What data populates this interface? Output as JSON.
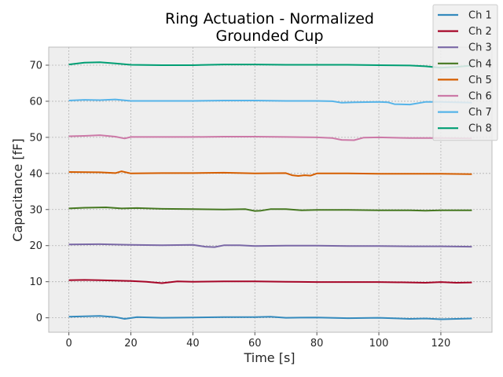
{
  "chart_data": {
    "type": "line",
    "title": "Ring Actuation - Normalized\nGrounded Cup",
    "xlabel": "Time [s]",
    "ylabel": "Capacitance [fF]",
    "xlim": [
      -6.5,
      136.5
    ],
    "ylim": [
      -4,
      75
    ],
    "xticks": [
      0,
      20,
      40,
      60,
      80,
      100,
      120
    ],
    "yticks": [
      0,
      10,
      20,
      30,
      40,
      50,
      60,
      70
    ],
    "grid": true,
    "legend_position": "top-right",
    "series": [
      {
        "name": "Ch 1",
        "color": "#348abd",
        "x": [
          0,
          5,
          10,
          15,
          18,
          22,
          30,
          40,
          50,
          60,
          65,
          70,
          80,
          90,
          100,
          110,
          115,
          120,
          125,
          130
        ],
        "y": [
          0.3,
          0.4,
          0.5,
          0.2,
          -0.3,
          0.2,
          0.0,
          0.1,
          0.2,
          0.2,
          0.3,
          0.0,
          0.1,
          -0.1,
          0.0,
          -0.3,
          -0.2,
          -0.4,
          -0.3,
          -0.2
        ]
      },
      {
        "name": "Ch 2",
        "color": "#a60628",
        "x": [
          0,
          5,
          10,
          15,
          20,
          25,
          30,
          35,
          40,
          50,
          60,
          70,
          80,
          90,
          100,
          110,
          115,
          120,
          125,
          130
        ],
        "y": [
          10.4,
          10.5,
          10.4,
          10.3,
          10.2,
          10.0,
          9.6,
          10.1,
          10.0,
          10.1,
          10.1,
          10.0,
          9.9,
          9.9,
          9.9,
          9.8,
          9.7,
          9.9,
          9.7,
          9.8
        ]
      },
      {
        "name": "Ch 3",
        "color": "#7a68a6",
        "x": [
          0,
          10,
          20,
          30,
          40,
          44,
          47,
          50,
          55,
          60,
          70,
          80,
          90,
          100,
          110,
          120,
          130
        ],
        "y": [
          20.3,
          20.4,
          20.2,
          20.1,
          20.2,
          19.7,
          19.6,
          20.1,
          20.1,
          19.9,
          20.0,
          20.0,
          19.9,
          19.9,
          19.8,
          19.8,
          19.7
        ]
      },
      {
        "name": "Ch 4",
        "color": "#467821",
        "x": [
          0,
          5,
          12,
          17,
          22,
          30,
          40,
          50,
          57,
          60,
          62,
          65,
          70,
          75,
          80,
          90,
          100,
          110,
          115,
          120,
          130
        ],
        "y": [
          30.3,
          30.5,
          30.6,
          30.3,
          30.4,
          30.2,
          30.1,
          30.0,
          30.1,
          29.6,
          29.7,
          30.1,
          30.1,
          29.8,
          29.9,
          29.9,
          29.8,
          29.8,
          29.7,
          29.8,
          29.8
        ]
      },
      {
        "name": "Ch 5",
        "color": "#d55e00",
        "x": [
          0,
          10,
          15,
          17,
          20,
          30,
          40,
          50,
          60,
          70,
          72,
          74,
          76,
          78,
          80,
          90,
          100,
          110,
          120,
          130
        ],
        "y": [
          40.4,
          40.3,
          40.1,
          40.6,
          40.0,
          40.1,
          40.1,
          40.2,
          40.0,
          40.1,
          39.5,
          39.3,
          39.5,
          39.4,
          40.0,
          40.0,
          39.9,
          39.9,
          39.9,
          39.8
        ]
      },
      {
        "name": "Ch 6",
        "color": "#cc79a7",
        "x": [
          0,
          5,
          10,
          15,
          18,
          20,
          30,
          40,
          50,
          60,
          70,
          80,
          85,
          88,
          92,
          95,
          100,
          110,
          120,
          130
        ],
        "y": [
          50.3,
          50.4,
          50.6,
          50.2,
          49.7,
          50.1,
          50.1,
          50.1,
          50.2,
          50.2,
          50.1,
          50.0,
          49.8,
          49.3,
          49.2,
          49.9,
          50.0,
          49.8,
          49.8,
          49.7
        ]
      },
      {
        "name": "Ch 7",
        "color": "#56b4e9",
        "x": [
          0,
          5,
          10,
          15,
          20,
          30,
          40,
          50,
          60,
          70,
          80,
          85,
          88,
          92,
          100,
          103,
          105,
          110,
          115,
          120,
          130
        ],
        "y": [
          60.2,
          60.4,
          60.3,
          60.5,
          60.1,
          60.1,
          60.1,
          60.2,
          60.2,
          60.1,
          60.1,
          60.0,
          59.6,
          59.7,
          59.8,
          59.7,
          59.2,
          59.1,
          59.8,
          59.8,
          59.6
        ]
      },
      {
        "name": "Ch 8",
        "color": "#009e73",
        "x": [
          0,
          5,
          10,
          15,
          20,
          30,
          40,
          50,
          60,
          70,
          80,
          90,
          100,
          110,
          115,
          120,
          125,
          130
        ],
        "y": [
          70.2,
          70.7,
          70.8,
          70.5,
          70.1,
          70.0,
          70.0,
          70.2,
          70.2,
          70.1,
          70.1,
          70.1,
          70.0,
          69.9,
          69.7,
          69.3,
          69.5,
          69.9
        ]
      }
    ]
  }
}
